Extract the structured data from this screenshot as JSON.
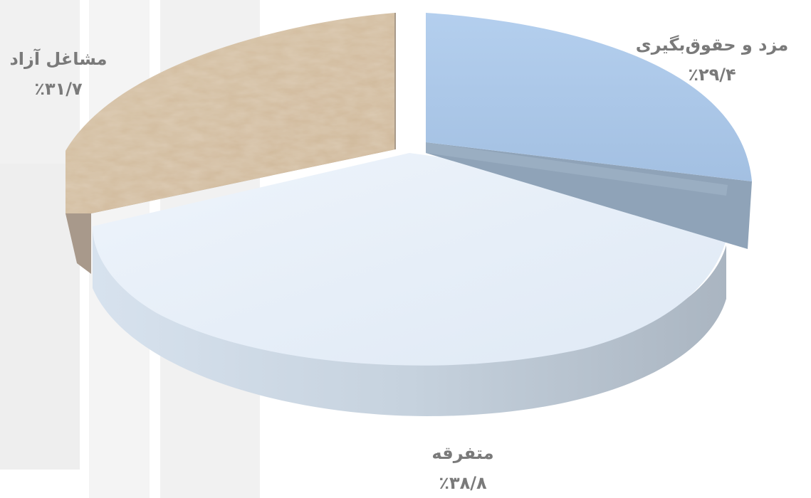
{
  "chart_data": {
    "type": "pie",
    "three_d": true,
    "exploded": true,
    "slices": [
      {
        "label": "مزد و حقوق‌بگیری",
        "value": 29.4,
        "value_label": "٪۲۹/۴",
        "color": "#aac6e6"
      },
      {
        "label": "متفرقه",
        "value": 38.8,
        "value_label": "٪۳۸/۸",
        "color": "#e9f1fa"
      },
      {
        "label": "مشاغل آزاد",
        "value": 31.7,
        "value_label": "٪۳۱/۷",
        "color": "#d9c4a8"
      }
    ]
  }
}
